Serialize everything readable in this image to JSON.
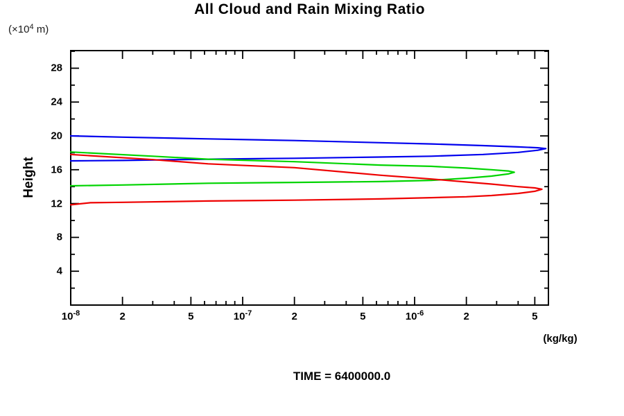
{
  "chart": {
    "title": "All Cloud and Rain Mixing Ratio",
    "time_label": "TIME = 6400000.0",
    "y_axis": {
      "label": "Height",
      "unit_prefix": "(×10",
      "unit_exp": "4",
      "unit_suffix": " m)",
      "ticks": [
        4,
        8,
        12,
        16,
        20,
        24,
        28
      ],
      "minor_ticks": [
        2,
        6,
        10,
        14,
        18,
        22,
        26,
        30
      ]
    },
    "x_axis": {
      "unit": "(kg/kg)",
      "ticks": [
        {
          "v": 1e-08,
          "label": "10",
          "exp": "-8"
        },
        {
          "v": 2e-08,
          "label": "2"
        },
        {
          "v": 5e-08,
          "label": "5"
        },
        {
          "v": 1e-07,
          "label": "10",
          "exp": "-7"
        },
        {
          "v": 2e-07,
          "label": "2"
        },
        {
          "v": 5e-07,
          "label": "5"
        },
        {
          "v": 1e-06,
          "label": "10",
          "exp": "-6"
        },
        {
          "v": 2e-06,
          "label": "2"
        },
        {
          "v": 5e-06,
          "label": "5"
        }
      ],
      "minor_ticks": [
        3e-08,
        4e-08,
        6e-08,
        7e-08,
        8e-08,
        9e-08,
        3e-07,
        4e-07,
        6e-07,
        7e-07,
        8e-07,
        9e-07,
        3e-06,
        4e-06
      ]
    }
  },
  "chart_data": {
    "type": "line",
    "title": "All Cloud and Rain Mixing Ratio",
    "xlabel": "(kg/kg)",
    "ylabel": "Height (×10⁴ m)",
    "xscale": "log",
    "xlim": [
      1e-08,
      6e-06
    ],
    "ylim": [
      0,
      30.1
    ],
    "grid": false,
    "legend": "none",
    "annotation": "TIME = 6400000.0",
    "frame_color": "#000000",
    "series": [
      {
        "name": "series-blue",
        "color": "#0000ee",
        "points": [
          [
            1e-08,
            20.0
          ],
          [
            2e-08,
            19.85
          ],
          [
            6.3e-08,
            19.65
          ],
          [
            2e-07,
            19.45
          ],
          [
            6.3e-07,
            19.2
          ],
          [
            1.25e-06,
            19.05
          ],
          [
            2.5e-06,
            18.85
          ],
          [
            4e-06,
            18.7
          ],
          [
            5.2e-06,
            18.6
          ],
          [
            5.8e-06,
            18.5
          ],
          [
            5.2e-06,
            18.3
          ],
          [
            4e-06,
            18.05
          ],
          [
            2.5e-06,
            17.8
          ],
          [
            1.25e-06,
            17.6
          ],
          [
            6.3e-07,
            17.5
          ],
          [
            2e-07,
            17.35
          ],
          [
            6.3e-08,
            17.25
          ],
          [
            2e-08,
            17.1
          ],
          [
            1e-08,
            17.05
          ]
        ]
      },
      {
        "name": "series-green",
        "color": "#00d400",
        "points": [
          [
            1e-08,
            18.1
          ],
          [
            3e-08,
            17.6
          ],
          [
            6.3e-08,
            17.25
          ],
          [
            2e-07,
            16.95
          ],
          [
            6.3e-07,
            16.55
          ],
          [
            1.25e-06,
            16.4
          ],
          [
            2e-06,
            16.2
          ],
          [
            2.8e-06,
            16.0
          ],
          [
            3.5e-06,
            15.85
          ],
          [
            3.8e-06,
            15.7
          ],
          [
            3.5e-06,
            15.5
          ],
          [
            2.8e-06,
            15.25
          ],
          [
            2e-06,
            15.0
          ],
          [
            1.25e-06,
            14.75
          ],
          [
            6.3e-07,
            14.6
          ],
          [
            2e-07,
            14.5
          ],
          [
            6.3e-08,
            14.4
          ],
          [
            2e-08,
            14.2
          ],
          [
            1e-08,
            14.1
          ]
        ]
      },
      {
        "name": "series-red",
        "color": "#ee0000",
        "points": [
          [
            1e-08,
            17.8
          ],
          [
            3e-08,
            17.2
          ],
          [
            6.3e-08,
            16.7
          ],
          [
            2e-07,
            16.25
          ],
          [
            6.3e-07,
            15.35
          ],
          [
            1.25e-06,
            14.9
          ],
          [
            2e-06,
            14.55
          ],
          [
            2.8e-06,
            14.3
          ],
          [
            4e-06,
            14.0
          ],
          [
            5e-06,
            13.85
          ],
          [
            5.5e-06,
            13.7
          ],
          [
            5e-06,
            13.45
          ],
          [
            4e-06,
            13.2
          ],
          [
            2.8e-06,
            12.95
          ],
          [
            2e-06,
            12.8
          ],
          [
            1.25e-06,
            12.7
          ],
          [
            6.3e-07,
            12.55
          ],
          [
            2e-07,
            12.4
          ],
          [
            6.3e-08,
            12.3
          ],
          [
            2e-08,
            12.15
          ],
          [
            1.3e-08,
            12.1
          ],
          [
            1e-08,
            11.85
          ]
        ]
      }
    ]
  }
}
